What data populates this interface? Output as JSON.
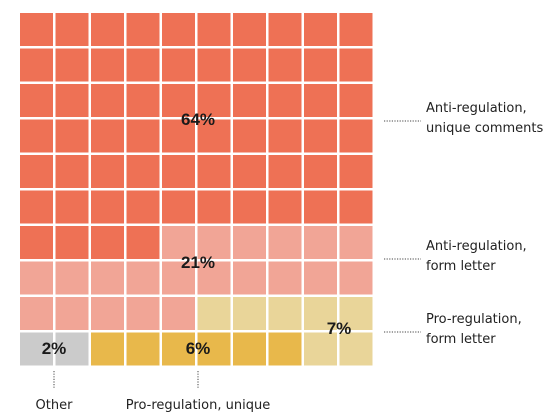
{
  "chart_data": {
    "type": "waffle",
    "grid": {
      "rows": 10,
      "cols": 10,
      "total_cells": 100
    },
    "segments": [
      {
        "key": "anti_unique",
        "percent": 64,
        "label": [
          "Anti-regulation,",
          "unique comments"
        ],
        "color": "#EE7155",
        "pct_label": "64%"
      },
      {
        "key": "anti_form",
        "percent": 21,
        "label": [
          "Anti-regulation,",
          "form letter"
        ],
        "color": "#F1A596",
        "pct_label": "21%"
      },
      {
        "key": "pro_form",
        "percent": 7,
        "label": [
          "Pro-regulation,",
          "form letter"
        ],
        "color": "#E9D599",
        "pct_label": "7%"
      },
      {
        "key": "pro_unique",
        "percent": 6,
        "label": [
          "Pro-regulation, unique"
        ],
        "color": "#E8B84B",
        "pct_label": "6%"
      },
      {
        "key": "other",
        "percent": 2,
        "label": [
          "Other"
        ],
        "color": "#CBCBCB",
        "pct_label": "2%"
      }
    ]
  }
}
